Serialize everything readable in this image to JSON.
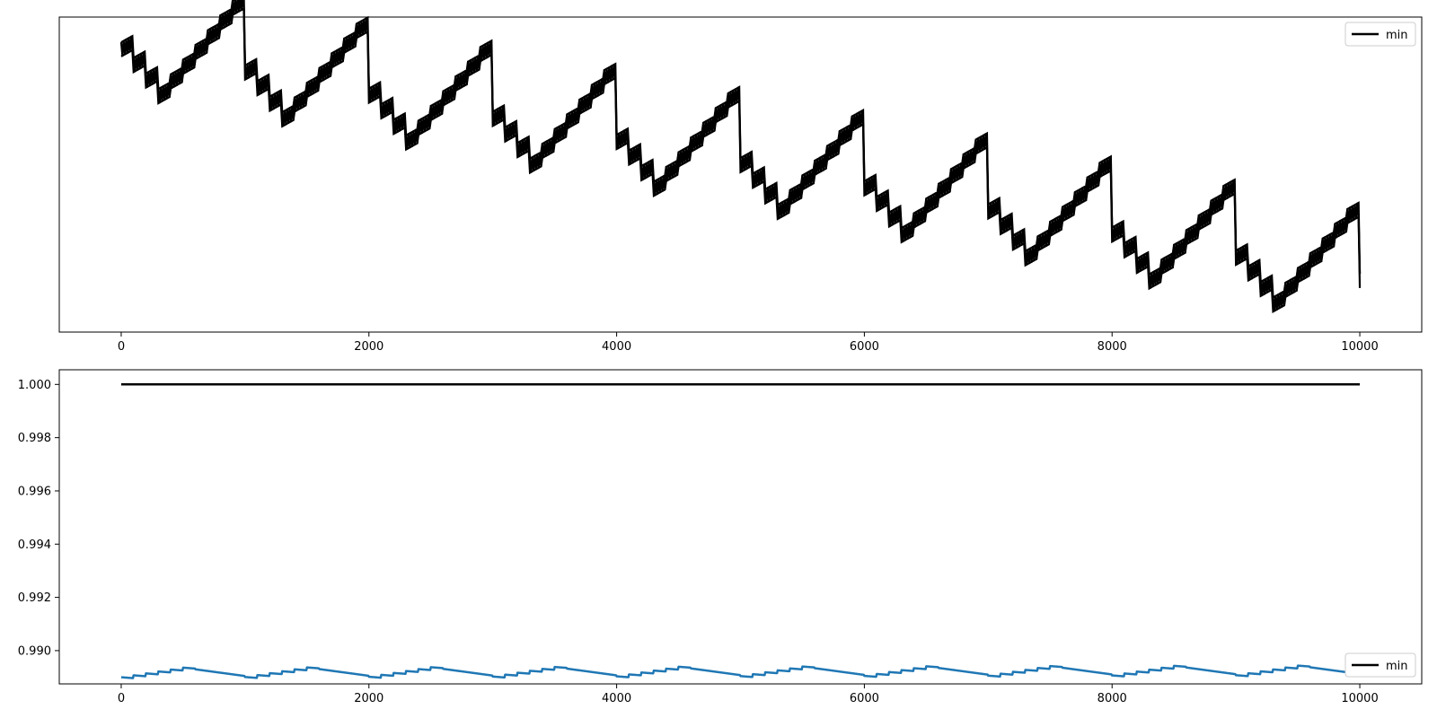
{
  "chart_data": [
    {
      "type": "line",
      "title": "",
      "xlabel": "",
      "ylabel": "",
      "xlim": [
        -500,
        10500
      ],
      "ylim": [
        0,
        1
      ],
      "xticks": [
        0,
        2000,
        4000,
        6000,
        8000,
        10000
      ],
      "xtick_labels": [
        "0",
        "2000",
        "4000",
        "6000",
        "8000",
        "10000"
      ],
      "yticks": [],
      "grid": false,
      "legend": {
        "placement": "top-right",
        "entries": [
          {
            "label": "min",
            "color": "#000000"
          }
        ]
      },
      "series": [
        {
          "name": "min",
          "color": "#000000",
          "style": "dense sawtooth oscillation band",
          "pattern": {
            "x_start": 0,
            "x_end": 10000,
            "cycle_length": 1000,
            "step_length": 100,
            "start_top": 0.92,
            "drift_per_cycle": -0.0735,
            "step_drop": 0.09,
            "ramp_rise": 0.055,
            "band_width": 0.045
          }
        }
      ]
    },
    {
      "type": "line",
      "title": "",
      "xlabel": "",
      "ylabel": "",
      "xlim": [
        -500,
        10500
      ],
      "ylim": [
        0.98875,
        1.00055
      ],
      "xticks": [
        0,
        2000,
        4000,
        6000,
        8000,
        10000
      ],
      "xtick_labels": [
        "0",
        "2000",
        "4000",
        "6000",
        "8000",
        "10000"
      ],
      "yticks": [
        0.99,
        0.992,
        0.994,
        0.996,
        0.998,
        1.0
      ],
      "ytick_labels": [
        "0.990",
        "0.992",
        "0.994",
        "0.996",
        "0.998",
        "1.000"
      ],
      "grid": false,
      "legend": {
        "placement": "bottom-right",
        "entries": [
          {
            "label": "min",
            "color": "#000000"
          }
        ]
      },
      "series": [
        {
          "name": "min",
          "color": "#000000",
          "x": [
            0,
            10000
          ],
          "y": [
            1.0,
            1.0
          ]
        },
        {
          "color": "#1f77b4",
          "style": "gentle sawtooth",
          "pattern": {
            "x_start": 0,
            "x_end": 10000,
            "cycle_length": 1000,
            "step_length": 100,
            "start_value": 0.989,
            "drift_per_cycle": 8.5e-06,
            "step_jump": 0.00012,
            "decay_per_step": 7e-05
          }
        }
      ]
    }
  ]
}
